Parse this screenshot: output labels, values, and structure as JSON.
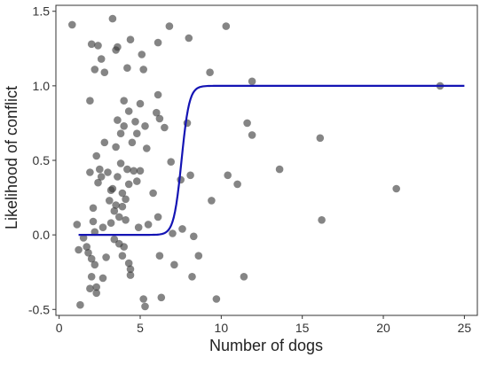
{
  "colors": {
    "point": "#3a3a3a",
    "curve": "#1414b4",
    "axis": "#333333"
  },
  "chart_data": {
    "type": "scatter",
    "xlabel": "Number of dogs",
    "ylabel": "Likelihood of conflict",
    "xlim": [
      -0.2,
      25.8
    ],
    "ylim": [
      -0.54,
      1.54
    ],
    "xticks": [
      0,
      5,
      10,
      15,
      20,
      25
    ],
    "yticks": [
      -0.5,
      0.0,
      0.5,
      1.0,
      1.5
    ],
    "xtick_labels": [
      "0",
      "5",
      "10",
      "15",
      "20",
      "25"
    ],
    "ytick_labels": [
      "-0.5",
      "0.0",
      "0.5",
      "1.0",
      "1.5"
    ],
    "grid": false,
    "series": [
      {
        "type": "scatter",
        "points": [
          [
            0.8,
            1.41
          ],
          [
            1.1,
            0.07
          ],
          [
            1.3,
            -0.47
          ],
          [
            1.2,
            -0.1
          ],
          [
            1.5,
            -0.02
          ],
          [
            1.7,
            -0.08
          ],
          [
            1.9,
            0.9
          ],
          [
            1.9,
            0.42
          ],
          [
            1.8,
            -0.12
          ],
          [
            1.9,
            -0.36
          ],
          [
            2.0,
            1.28
          ],
          [
            2.0,
            -0.16
          ],
          [
            2.1,
            0.18
          ],
          [
            2.1,
            0.09
          ],
          [
            2.0,
            -0.28
          ],
          [
            2.2,
            1.11
          ],
          [
            2.2,
            0.02
          ],
          [
            2.2,
            -0.2
          ],
          [
            2.3,
            0.53
          ],
          [
            2.3,
            -0.35
          ],
          [
            2.3,
            -0.39
          ],
          [
            2.4,
            1.27
          ],
          [
            2.4,
            0.35
          ],
          [
            2.5,
            0.44
          ],
          [
            2.6,
            1.18
          ],
          [
            2.6,
            0.39
          ],
          [
            2.7,
            0.05
          ],
          [
            2.7,
            -0.29
          ],
          [
            2.8,
            1.09
          ],
          [
            2.8,
            0.62
          ],
          [
            2.9,
            -0.15
          ],
          [
            3.0,
            0.42
          ],
          [
            3.1,
            0.23
          ],
          [
            3.2,
            0.3
          ],
          [
            3.2,
            0.08
          ],
          [
            3.3,
            1.45
          ],
          [
            3.3,
            0.31
          ],
          [
            3.4,
            0.16
          ],
          [
            3.4,
            -0.03
          ],
          [
            3.5,
            1.24
          ],
          [
            3.5,
            0.59
          ],
          [
            3.5,
            0.2
          ],
          [
            3.6,
            1.26
          ],
          [
            3.6,
            0.77
          ],
          [
            3.6,
            0.39
          ],
          [
            3.7,
            0.12
          ],
          [
            3.7,
            -0.06
          ],
          [
            3.8,
            0.68
          ],
          [
            3.8,
            0.48
          ],
          [
            3.9,
            0.28
          ],
          [
            3.9,
            0.19
          ],
          [
            3.9,
            -0.14
          ],
          [
            4.0,
            0.9
          ],
          [
            4.0,
            0.73
          ],
          [
            4.0,
            -0.08
          ],
          [
            4.1,
            0.24
          ],
          [
            4.1,
            0.1
          ],
          [
            4.2,
            1.12
          ],
          [
            4.2,
            0.44
          ],
          [
            4.3,
            0.83
          ],
          [
            4.3,
            0.34
          ],
          [
            4.3,
            -0.19
          ],
          [
            4.4,
            1.31
          ],
          [
            4.4,
            -0.23
          ],
          [
            4.4,
            -0.27
          ],
          [
            4.5,
            0.62
          ],
          [
            4.6,
            0.43
          ],
          [
            4.7,
            0.76
          ],
          [
            4.8,
            0.68
          ],
          [
            4.8,
            0.36
          ],
          [
            4.9,
            0.05
          ],
          [
            5.0,
            0.88
          ],
          [
            5.0,
            0.43
          ],
          [
            5.1,
            1.21
          ],
          [
            5.2,
            1.11
          ],
          [
            5.2,
            -0.43
          ],
          [
            5.3,
            0.73
          ],
          [
            5.3,
            -0.48
          ],
          [
            5.4,
            0.58
          ],
          [
            5.5,
            0.07
          ],
          [
            5.8,
            0.28
          ],
          [
            6.0,
            0.82
          ],
          [
            6.1,
            1.29
          ],
          [
            6.1,
            0.94
          ],
          [
            6.1,
            0.12
          ],
          [
            6.2,
            0.78
          ],
          [
            6.2,
            -0.14
          ],
          [
            6.3,
            -0.42
          ],
          [
            6.5,
            0.72
          ],
          [
            6.8,
            1.4
          ],
          [
            6.9,
            0.49
          ],
          [
            7.0,
            0.01
          ],
          [
            7.1,
            -0.2
          ],
          [
            7.5,
            0.37
          ],
          [
            7.6,
            0.04
          ],
          [
            7.9,
            0.75
          ],
          [
            8.0,
            1.32
          ],
          [
            8.1,
            0.4
          ],
          [
            8.2,
            -0.28
          ],
          [
            8.3,
            -0.01
          ],
          [
            8.6,
            -0.14
          ],
          [
            9.3,
            1.09
          ],
          [
            9.4,
            0.23
          ],
          [
            9.7,
            -0.43
          ],
          [
            10.3,
            1.4
          ],
          [
            10.4,
            0.4
          ],
          [
            11.0,
            0.34
          ],
          [
            11.4,
            -0.28
          ],
          [
            11.6,
            0.75
          ],
          [
            11.9,
            1.03
          ],
          [
            11.9,
            0.67
          ],
          [
            13.6,
            0.44
          ],
          [
            16.1,
            0.65
          ],
          [
            16.2,
            0.1
          ],
          [
            20.8,
            0.31
          ],
          [
            23.5,
            1.0
          ]
        ]
      },
      {
        "type": "line",
        "kind": "logistic",
        "x_range": [
          1.2,
          25.0
        ],
        "lower": 0.0,
        "upper": 1.0,
        "midpoint": 7.55,
        "slope": 4.2
      }
    ]
  }
}
